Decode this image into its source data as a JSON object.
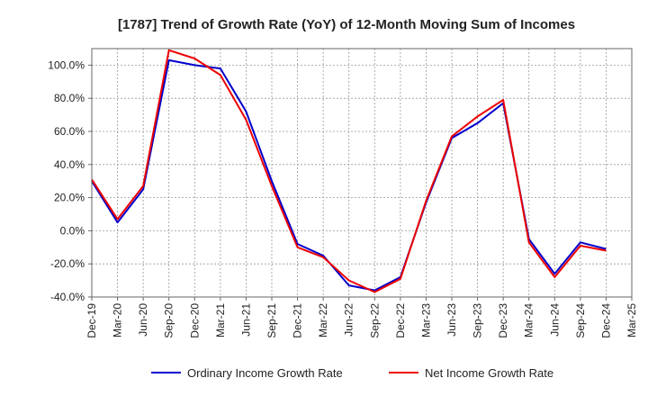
{
  "chart_data": {
    "type": "line",
    "title": "[1787]  Trend of Growth Rate (YoY) of 12-Month Moving Sum of Incomes",
    "xlabel": "",
    "ylabel": "",
    "x_ticks": [
      "Dec-19",
      "Mar-20",
      "Jun-20",
      "Sep-20",
      "Dec-20",
      "Mar-21",
      "Jun-21",
      "Sep-21",
      "Dec-21",
      "Mar-22",
      "Jun-22",
      "Sep-22",
      "Dec-22",
      "Mar-23",
      "Jun-23",
      "Sep-23",
      "Dec-23",
      "Mar-24",
      "Jun-24",
      "Sep-24",
      "Dec-24",
      "Mar-25"
    ],
    "y_ticks": [
      "-40.0%",
      "-20.0%",
      "0.0%",
      "20.0%",
      "40.0%",
      "60.0%",
      "80.0%",
      "100.0%"
    ],
    "ylim": [
      -40,
      110
    ],
    "grid": true,
    "legend_position": "bottom",
    "series": [
      {
        "name": "Ordinary Income Growth Rate",
        "color": "#0000cc",
        "x": [
          "Dec-19",
          "Mar-20",
          "Jun-20",
          "Sep-20",
          "Dec-20",
          "Mar-21",
          "Jun-21",
          "Sep-21",
          "Dec-21",
          "Mar-22",
          "Jun-22",
          "Sep-22",
          "Dec-22",
          "Mar-23",
          "Jun-23",
          "Sep-23",
          "Dec-23",
          "Mar-24",
          "Jun-24",
          "Sep-24",
          "Dec-24"
        ],
        "values": [
          30,
          5,
          25,
          103,
          100,
          98,
          72,
          30,
          -8,
          -15,
          -33,
          -36,
          -28,
          17,
          56,
          65,
          77,
          -5,
          -26,
          -7,
          -11
        ]
      },
      {
        "name": "Net Income Growth Rate",
        "color": "#ee0000",
        "x": [
          "Dec-19",
          "Mar-20",
          "Jun-20",
          "Sep-20",
          "Dec-20",
          "Mar-21",
          "Jun-21",
          "Sep-21",
          "Dec-21",
          "Mar-22",
          "Jun-22",
          "Sep-22",
          "Dec-22",
          "Mar-23",
          "Jun-23",
          "Sep-23",
          "Dec-23",
          "Mar-24",
          "Jun-24",
          "Sep-24",
          "Dec-24"
        ],
        "values": [
          31,
          7,
          27,
          109,
          104,
          94,
          67,
          27,
          -10,
          -16,
          -30,
          -37,
          -29,
          18,
          57,
          69,
          79,
          -7,
          -28,
          -9,
          -12
        ]
      }
    ]
  }
}
